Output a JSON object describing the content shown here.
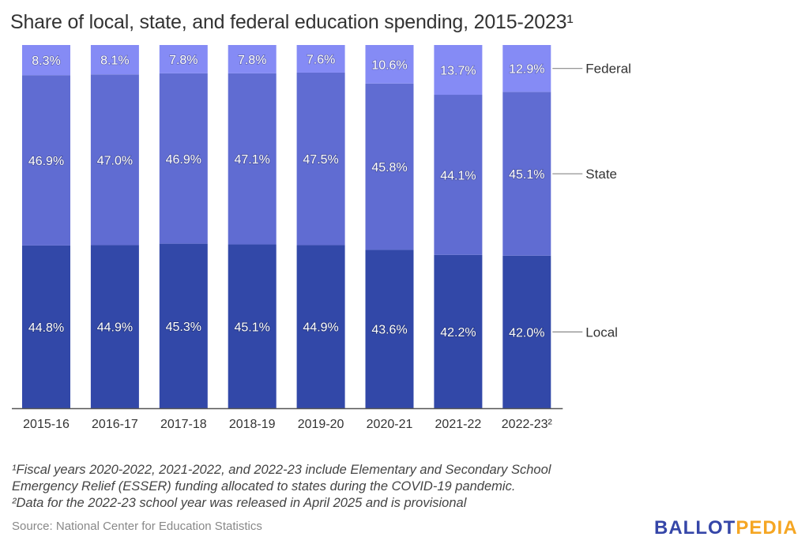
{
  "colors": {
    "local": "#3248a8",
    "state": "#606cd2",
    "federal": "#858bf5",
    "axis": "#555555",
    "text": "#333333",
    "legend_line": "#888888",
    "logo_ballot": "#3546a8",
    "logo_pedia": "#f5a623"
  },
  "chart_data": {
    "type": "bar",
    "stacked": true,
    "percent": true,
    "title": "Share of local, state, and federal education spending, 2015-2023¹",
    "xlabel": "",
    "ylabel": "",
    "ylim": [
      0,
      100
    ],
    "grid": false,
    "legend_placement": "right",
    "categories": [
      "2015-16",
      "2016-17",
      "2017-18",
      "2018-19",
      "2019-20",
      "2020-21",
      "2021-22",
      "2022-23²"
    ],
    "series": [
      {
        "name": "Local",
        "values": [
          44.8,
          44.9,
          45.3,
          45.1,
          44.9,
          43.6,
          42.2,
          42.0
        ],
        "labels": [
          "44.8%",
          "44.9%",
          "45.3%",
          "45.1%",
          "44.9%",
          "43.6%",
          "42.2%",
          "42.0%"
        ]
      },
      {
        "name": "State",
        "values": [
          46.9,
          47.0,
          46.9,
          47.1,
          47.5,
          45.8,
          44.1,
          45.1
        ],
        "labels": [
          "46.9%",
          "47.0%",
          "46.9%",
          "47.1%",
          "47.5%",
          "45.8%",
          "44.1%",
          "45.1%"
        ]
      },
      {
        "name": "Federal",
        "values": [
          8.3,
          8.1,
          7.8,
          7.8,
          7.6,
          10.6,
          13.7,
          12.9
        ],
        "labels": [
          "8.3%",
          "8.1%",
          "7.8%",
          "7.8%",
          "7.6%",
          "10.6%",
          "13.7%",
          "12.9%"
        ]
      }
    ]
  },
  "footnotes": [
    "¹Fiscal years 2020-2022, 2021-2022, and 2022-23 include Elementary and Secondary School",
    "Emergency Relief (ESSER) funding allocated to states during the COVID-19 pandemic.",
    "²Data for the 2022-23 school year was released in April 2025 and is provisional"
  ],
  "source": "Source: National Center for Education Statistics",
  "logo": {
    "part1": "BALLOT",
    "part2": "PEDIA"
  }
}
